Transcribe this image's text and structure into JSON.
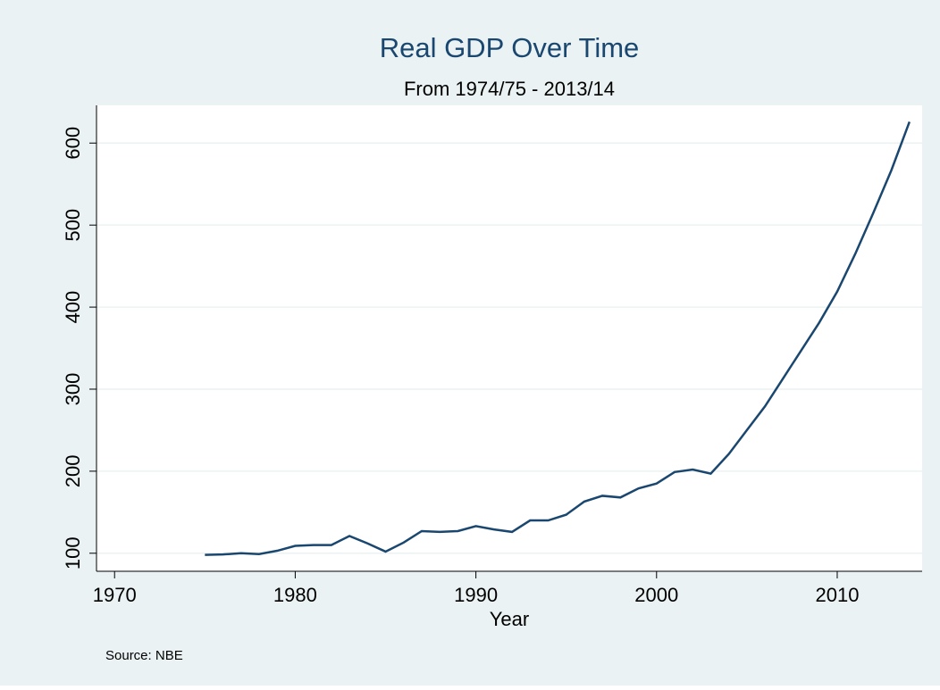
{
  "chart_data": {
    "type": "line",
    "title": "Real GDP Over Time",
    "subtitle": "From 1974/75 - 2013/14",
    "x_label": "Year",
    "note": "Source: NBE",
    "x": [
      1975,
      1976,
      1977,
      1978,
      1979,
      1980,
      1981,
      1982,
      1983,
      1984,
      1985,
      1986,
      1987,
      1988,
      1989,
      1990,
      1991,
      1992,
      1993,
      1994,
      1995,
      1996,
      1997,
      1998,
      1999,
      2000,
      2001,
      2002,
      2003,
      2004,
      2005,
      2006,
      2007,
      2008,
      2009,
      2010,
      2011,
      2012,
      2013,
      2014
    ],
    "series": [
      {
        "color": "#1a476f",
        "values": [
          98,
          98.5,
          100,
          99,
          103,
          109,
          110,
          110,
          121,
          112,
          102,
          113,
          127,
          126,
          127,
          133,
          129,
          126,
          140,
          140,
          147,
          163,
          170,
          168,
          179,
          185,
          199,
          202,
          197,
          221,
          250,
          279,
          313,
          347,
          381,
          419,
          465,
          515,
          567,
          626
        ]
      }
    ],
    "xlim": [
      1969,
      2014.7
    ],
    "xticks": [
      1970,
      1980,
      1990,
      2000,
      2010
    ],
    "ylim": [
      78,
      646
    ],
    "yticks": [
      100,
      200,
      300,
      400,
      500,
      600
    ],
    "grid": true
  }
}
